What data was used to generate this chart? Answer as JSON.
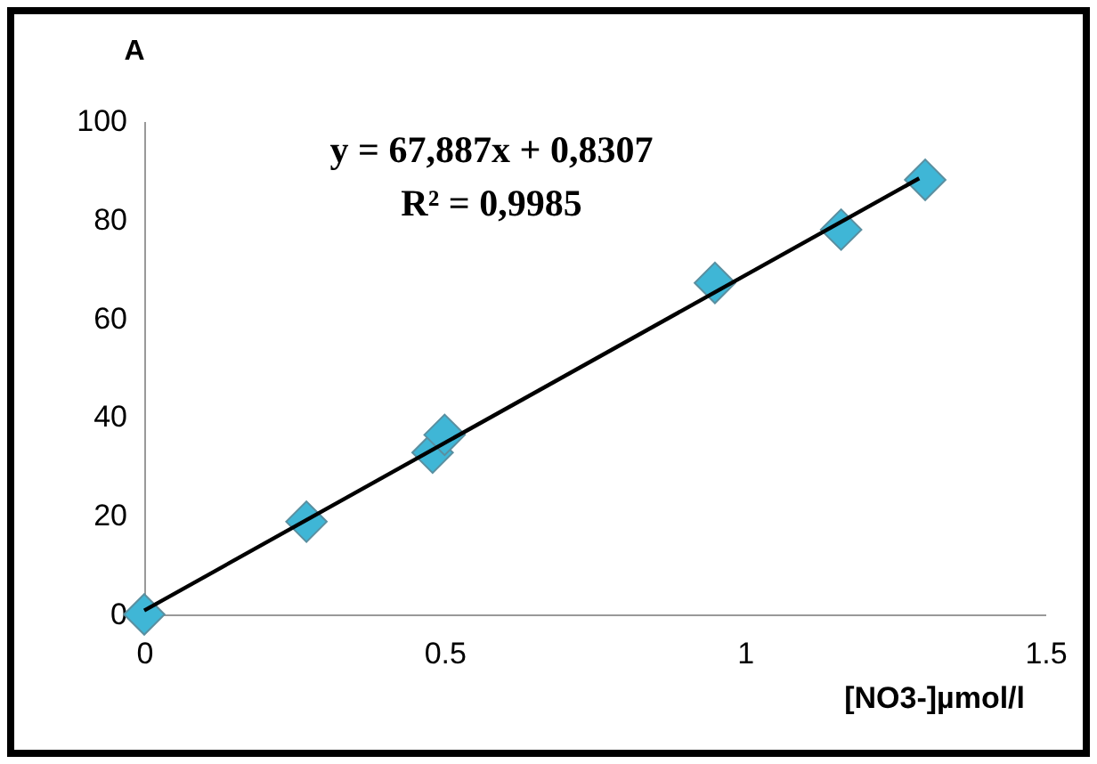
{
  "chart_data": {
    "type": "scatter",
    "xlabel": "[NO3-]µmol/l",
    "ylabel": "A",
    "annotations": [
      "y = 67,887x + 0,8307",
      "R² = 0,9985"
    ],
    "series": [
      {
        "color": "#3fb6d6",
        "x": [
          0,
          0.27,
          0.48,
          0.5,
          0.95,
          1.16,
          1.3
        ],
        "values": [
          0,
          18.8,
          32.8,
          36.4,
          67.2,
          78,
          88.1
        ]
      },
      {
        "type": "line",
        "marker": "none",
        "color": "#000000",
        "x": [
          0,
          1.29
        ],
        "values": [
          0.8,
          88.4
        ]
      }
    ],
    "marker": "diamond",
    "xlim": [
      0,
      1.5
    ],
    "ylim": [
      0,
      100
    ],
    "xticks": [
      0,
      0.5,
      1,
      1.5
    ],
    "yticks": [
      0,
      20,
      40,
      60,
      80,
      100
    ],
    "grid": false
  }
}
